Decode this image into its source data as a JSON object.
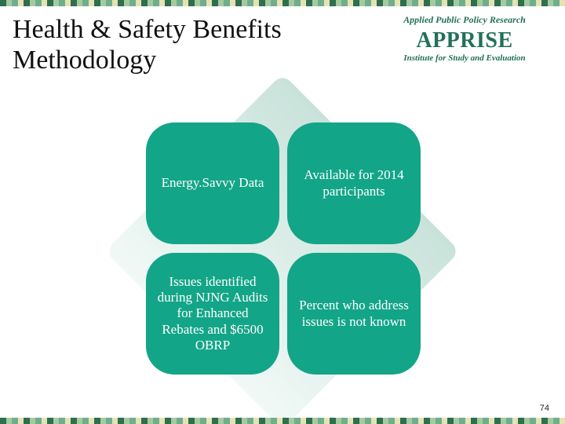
{
  "title": "Health & Safety Benefits Methodology",
  "page_number": "74",
  "logo": {
    "arc": "Applied Public Policy Research",
    "brand": "APPRISE",
    "tagline": "Institute for Study and Evaluation",
    "color": "#22705a"
  },
  "border": {
    "segments": 96,
    "colors": [
      "#2e6f4e",
      "#a7c9a0",
      "#6fae8c",
      "#e7e2b5"
    ]
  },
  "diagram": {
    "bubble_color": "#13a588",
    "bubble_text_color": "#ffffff",
    "diamond_gradient_top": "#c8e2da",
    "diamond_gradient_bottom": "#f1f9f7",
    "bubbles": {
      "top_left": {
        "text": "Energy.Savvy Data"
      },
      "top_right": {
        "text": "Available for 2014 participants"
      },
      "bottom_left": {
        "text": "Issues identified during NJNG Audits for Enhanced Rebates and $6500 OBRP"
      },
      "bottom_right": {
        "text": "Percent who address issues is not known"
      }
    }
  }
}
